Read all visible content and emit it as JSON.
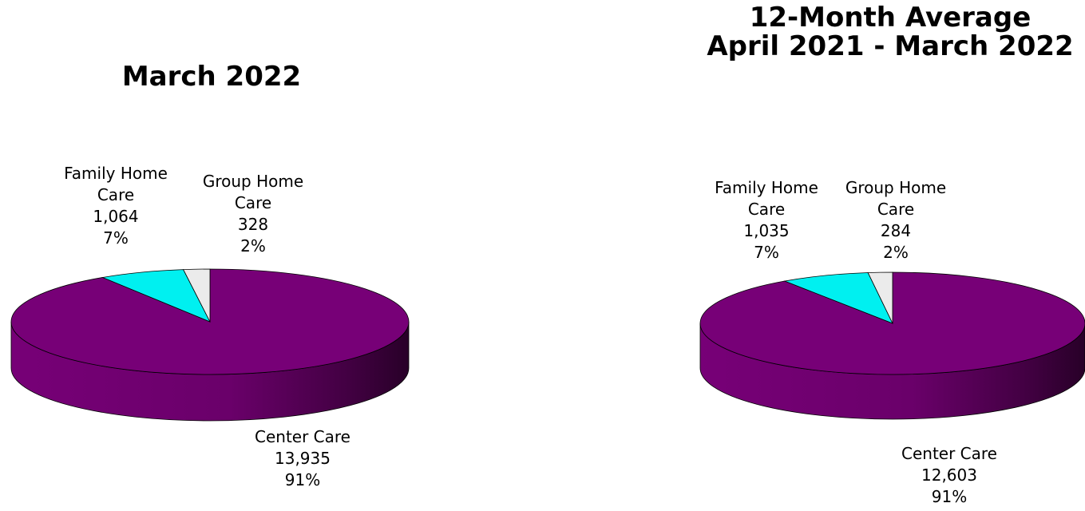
{
  "chart_data": [
    {
      "type": "pie",
      "title": "March 2022",
      "slices": [
        {
          "label": "Center Care",
          "value": 13935,
          "value_text": "13,935",
          "percent_text": "91%",
          "color": "#770077"
        },
        {
          "label": "Family Home Care",
          "value": 1064,
          "value_text": "1,064",
          "percent_text": "7%",
          "color": "#00f0f0"
        },
        {
          "label": "Group Home Care",
          "value": 328,
          "value_text": "328",
          "percent_text": "2%",
          "color": "#ebebeb"
        }
      ]
    },
    {
      "type": "pie",
      "title": "12-Month Average",
      "subtitle": "April 2021 - March 2022",
      "slices": [
        {
          "label": "Center Care",
          "value": 12603,
          "value_text": "12,603",
          "percent_text": "91%",
          "color": "#770077"
        },
        {
          "label": "Family Home Care",
          "value": 1035,
          "value_text": "1,035",
          "percent_text": "7%",
          "color": "#00f0f0"
        },
        {
          "label": "Group Home Care",
          "value": 284,
          "value_text": "284",
          "percent_text": "2%",
          "color": "#ebebeb"
        }
      ]
    }
  ],
  "label_lines": {
    "family_home_care": [
      "Family Home",
      "Care"
    ],
    "group_home_care": [
      "Group Home",
      "Care"
    ]
  }
}
